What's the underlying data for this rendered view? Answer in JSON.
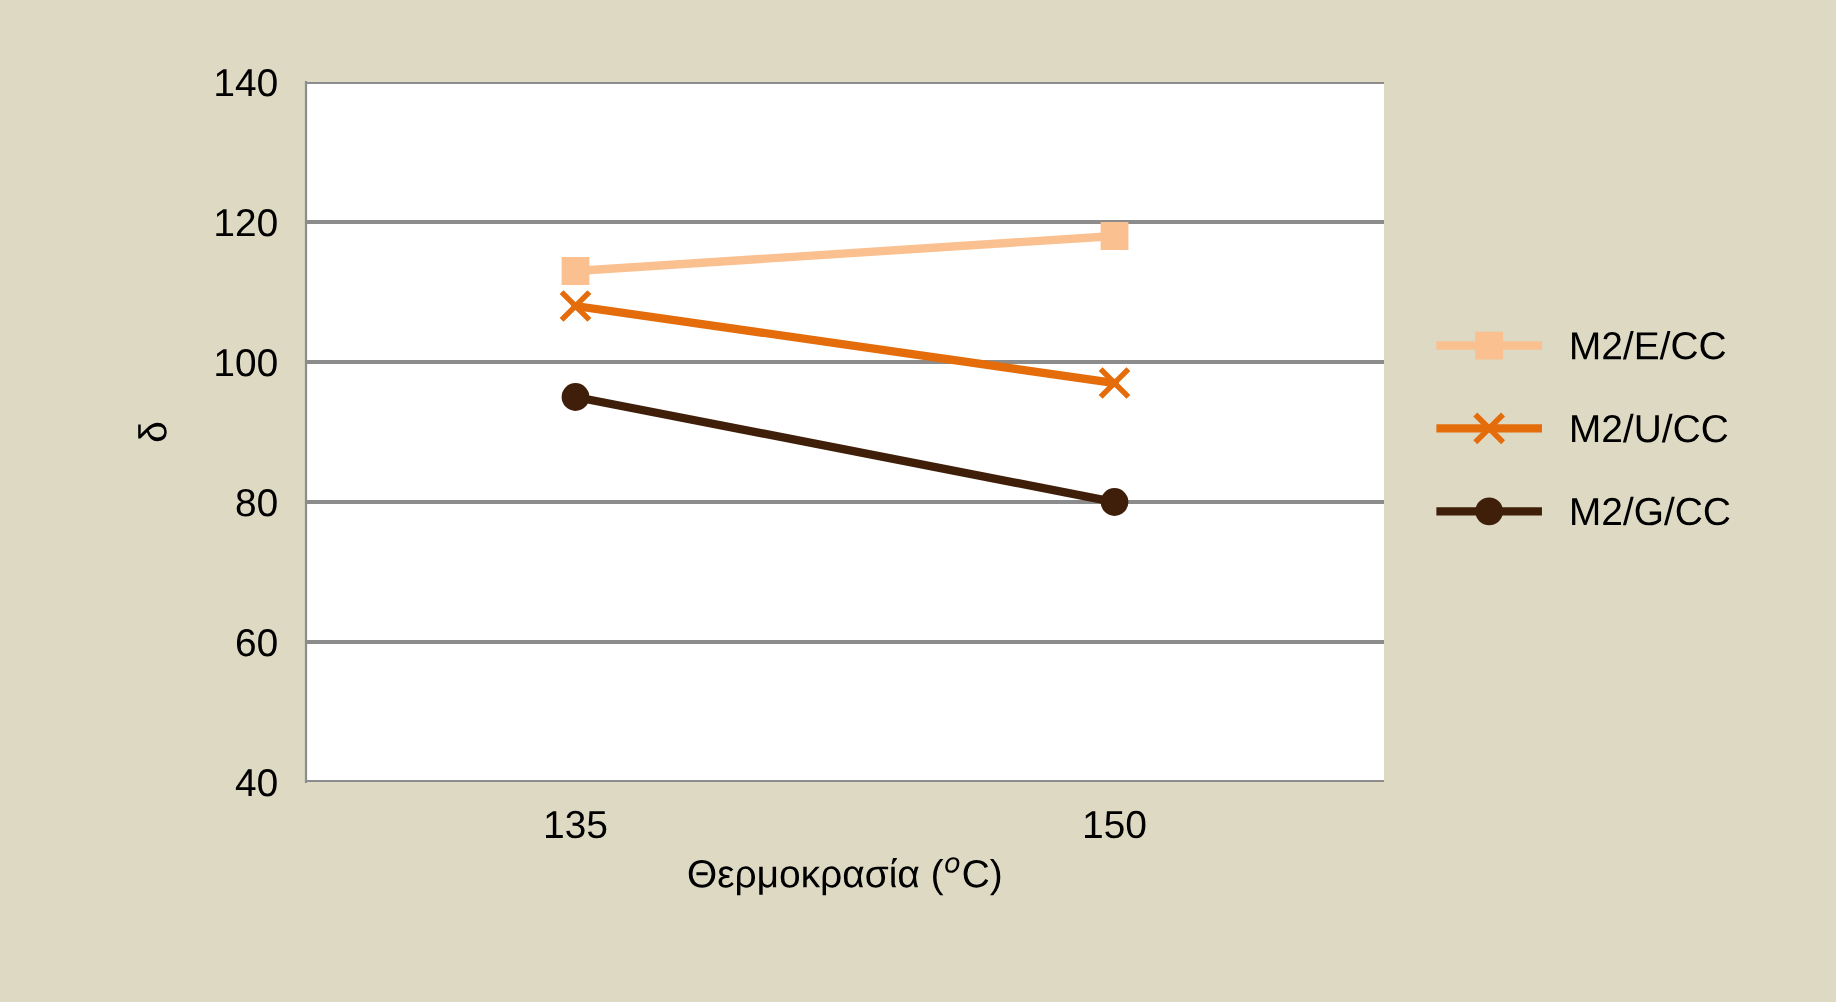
{
  "chart_data": {
    "type": "line",
    "xlabel": "Θερμοκρασία ($^{o}$C)",
    "ylabel": "δ",
    "categories": [
      "135",
      "150"
    ],
    "series": [
      {
        "name": "M2/E/CC",
        "color": "#fac090",
        "marker": "square",
        "values": [
          113,
          118
        ]
      },
      {
        "name": "M2/U/CC",
        "color": "#e46c0a",
        "marker": "cross",
        "values": [
          108,
          97
        ]
      },
      {
        "name": "M2/G/CC",
        "color": "#3f1f09",
        "marker": "circle",
        "values": [
          95,
          80
        ]
      }
    ],
    "ylim": [
      40,
      140
    ],
    "yticks": [
      40,
      60,
      80,
      100,
      120,
      140
    ],
    "grid": "y",
    "legend": "right"
  }
}
